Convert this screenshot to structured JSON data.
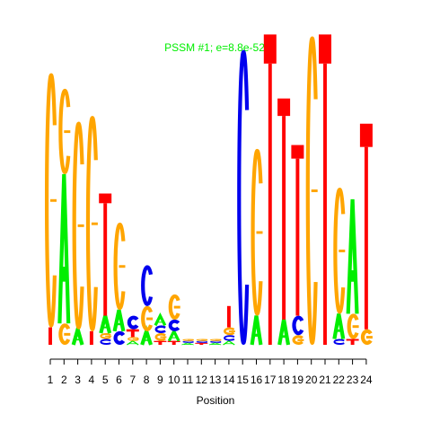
{
  "chart_data": {
    "type": "sequence-logo",
    "title": "PSSM #1; e=8.8e-52",
    "title_color": "#00ee00",
    "xlabel": "Position",
    "ylabel": "",
    "positions": [
      1,
      2,
      3,
      4,
      5,
      6,
      7,
      8,
      9,
      10,
      11,
      12,
      13,
      14,
      15,
      16,
      17,
      18,
      19,
      20,
      21,
      22,
      23,
      24
    ],
    "ylim": [
      0,
      2
    ],
    "colors": {
      "A": "#00ee00",
      "C": "#0000ee",
      "G": "#ffa500",
      "T": "#ff0000"
    },
    "columns": [
      {
        "position": 1,
        "letters": [
          {
            "base": "T",
            "height": 0.09
          },
          {
            "base": "G",
            "height": 1.31
          }
        ]
      },
      {
        "position": 2,
        "letters": [
          {
            "base": "G",
            "height": 0.11
          },
          {
            "base": "A",
            "height": 0.77
          },
          {
            "base": "G",
            "height": 0.44
          }
        ]
      },
      {
        "position": 3,
        "letters": [
          {
            "base": "A",
            "height": 0.08
          },
          {
            "base": "G",
            "height": 1.07
          }
        ]
      },
      {
        "position": 4,
        "letters": [
          {
            "base": "T",
            "height": 0.07
          },
          {
            "base": "G",
            "height": 1.11
          }
        ]
      },
      {
        "position": 5,
        "letters": [
          {
            "base": "C",
            "height": 0.03
          },
          {
            "base": "G",
            "height": 0.03
          },
          {
            "base": "A",
            "height": 0.09
          },
          {
            "base": "T",
            "height": 0.58
          },
          {
            "base": "T",
            "height": 0.05
          }
        ]
      },
      {
        "position": 6,
        "letters": [
          {
            "base": "C",
            "height": 0.07
          },
          {
            "base": "A",
            "height": 0.11
          },
          {
            "base": "G",
            "height": 0.45
          }
        ]
      },
      {
        "position": 7,
        "letters": [
          {
            "base": "A",
            "height": 0.02
          },
          {
            "base": "G",
            "height": 0.02
          },
          {
            "base": "T",
            "height": 0.04
          },
          {
            "base": "C",
            "height": 0.07
          }
        ]
      },
      {
        "position": 8,
        "letters": [
          {
            "base": "A",
            "height": 0.07
          },
          {
            "base": "G",
            "height": 0.13
          },
          {
            "base": "C",
            "height": 0.21
          }
        ]
      },
      {
        "position": 9,
        "letters": [
          {
            "base": "T",
            "height": 0.02
          },
          {
            "base": "G",
            "height": 0.04
          },
          {
            "base": "C",
            "height": 0.04
          },
          {
            "base": "A",
            "height": 0.05
          }
        ]
      },
      {
        "position": 10,
        "letters": [
          {
            "base": "T",
            "height": 0.02
          },
          {
            "base": "A",
            "height": 0.05
          },
          {
            "base": "C",
            "height": 0.06
          },
          {
            "base": "G",
            "height": 0.13
          }
        ]
      },
      {
        "position": 11,
        "letters": [
          {
            "base": "A",
            "height": 0.01
          },
          {
            "base": "C",
            "height": 0.01
          },
          {
            "base": "G",
            "height": 0.01
          }
        ]
      },
      {
        "position": 12,
        "letters": [
          {
            "base": "T",
            "height": 0.01
          },
          {
            "base": "C",
            "height": 0.01
          },
          {
            "base": "G",
            "height": 0.01
          }
        ]
      },
      {
        "position": 13,
        "letters": [
          {
            "base": "A",
            "height": 0.01
          },
          {
            "base": "C",
            "height": 0.01
          },
          {
            "base": "G",
            "height": 0.01
          }
        ]
      },
      {
        "position": 14,
        "letters": [
          {
            "base": "A",
            "height": 0.02
          },
          {
            "base": "C",
            "height": 0.03
          },
          {
            "base": "G",
            "height": 0.04
          },
          {
            "base": "T",
            "height": 0.11
          }
        ]
      },
      {
        "position": 15,
        "letters": [
          {
            "base": "C",
            "height": 1.52
          }
        ]
      },
      {
        "position": 16,
        "letters": [
          {
            "base": "A",
            "height": 0.15
          },
          {
            "base": "G",
            "height": 0.86
          }
        ]
      },
      {
        "position": 17,
        "letters": [
          {
            "base": "T",
            "height": 1.45
          },
          {
            "base": "T",
            "height": 0.15
          }
        ]
      },
      {
        "position": 18,
        "letters": [
          {
            "base": "A",
            "height": 0.13
          },
          {
            "base": "T",
            "height": 1.05
          },
          {
            "base": "T",
            "height": 0.09
          }
        ]
      },
      {
        "position": 19,
        "letters": [
          {
            "base": "G",
            "height": 0.05
          },
          {
            "base": "C",
            "height": 0.1
          },
          {
            "base": "T",
            "height": 0.81
          },
          {
            "base": "T",
            "height": 0.07
          }
        ]
      },
      {
        "position": 20,
        "letters": [
          {
            "base": "G",
            "height": 1.59
          }
        ]
      },
      {
        "position": 21,
        "letters": [
          {
            "base": "T",
            "height": 1.45
          },
          {
            "base": "T",
            "height": 0.15
          }
        ]
      },
      {
        "position": 22,
        "letters": [
          {
            "base": "C",
            "height": 0.03
          },
          {
            "base": "A",
            "height": 0.13
          },
          {
            "base": "G",
            "height": 0.65
          }
        ]
      },
      {
        "position": 23,
        "letters": [
          {
            "base": "T",
            "height": 0.03
          },
          {
            "base": "G",
            "height": 0.13
          },
          {
            "base": "A",
            "height": 0.59
          }
        ]
      },
      {
        "position": 24,
        "letters": [
          {
            "base": "G",
            "height": 0.08
          },
          {
            "base": "T",
            "height": 0.94
          },
          {
            "base": "T",
            "height": 0.12
          }
        ]
      }
    ]
  }
}
